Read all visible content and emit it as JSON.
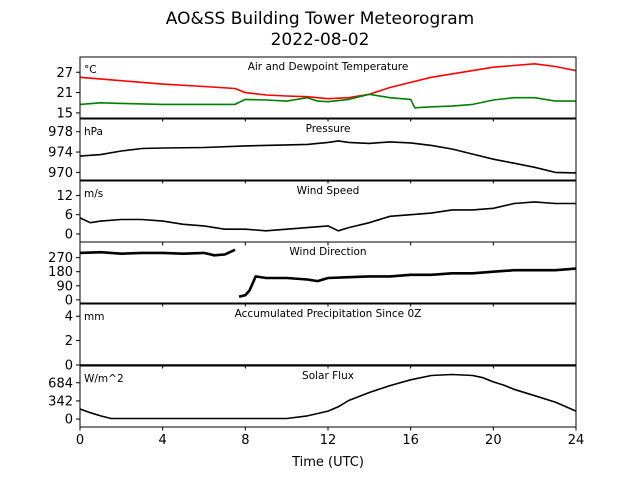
{
  "figure": {
    "title_line1": "AO&SS Building Tower Meteorogram",
    "title_line2": "2022-08-02",
    "xlabel": "Time (UTC)",
    "x_ticks": [
      0,
      4,
      8,
      12,
      16,
      20,
      24
    ],
    "xlim": [
      0,
      24
    ]
  },
  "chart_data": [
    {
      "type": "line",
      "title": "Air and Dewpoint Temperature",
      "unit": "°C",
      "ylim": [
        13.5,
        31.5
      ],
      "y_ticks": [
        15,
        21,
        27
      ],
      "series": [
        {
          "color": "#ff0000",
          "x": [
            0,
            2,
            4,
            6,
            7.5,
            8,
            9,
            10,
            11,
            11.5,
            12,
            13,
            14,
            15,
            16,
            17,
            18,
            19,
            20,
            21,
            22,
            23,
            24
          ],
          "y": [
            25.5,
            24.5,
            23.5,
            22.8,
            22.2,
            21.0,
            20.3,
            20.0,
            19.8,
            19.5,
            19.2,
            19.5,
            20.5,
            22.5,
            24.0,
            25.5,
            26.5,
            27.5,
            28.5,
            29.0,
            29.5,
            28.7,
            27.5
          ]
        },
        {
          "color": "#008000",
          "x": [
            0,
            1,
            2,
            4,
            6,
            7.5,
            8,
            9,
            10,
            11,
            11.5,
            12,
            13,
            14,
            15,
            16,
            16.2,
            17,
            18,
            19,
            20,
            21,
            22,
            23,
            24
          ],
          "y": [
            17.5,
            18.0,
            17.8,
            17.5,
            17.5,
            17.5,
            19.0,
            18.8,
            18.5,
            19.5,
            18.5,
            18.3,
            19.0,
            20.5,
            19.5,
            19.0,
            16.5,
            16.8,
            17.0,
            17.5,
            18.8,
            19.5,
            19.5,
            18.5,
            18.5
          ]
        }
      ]
    },
    {
      "type": "line",
      "title": "Pressure",
      "unit": "hPa",
      "ylim": [
        968.5,
        980.5
      ],
      "y_ticks": [
        970,
        974,
        978
      ],
      "series": [
        {
          "color": "#000000",
          "x": [
            0,
            1,
            2,
            3,
            4,
            6,
            8,
            10,
            11,
            12,
            12.5,
            13,
            14,
            15,
            16,
            17,
            18,
            19,
            20,
            21,
            22,
            23,
            24
          ],
          "y": [
            973.2,
            973.5,
            974.2,
            974.7,
            974.8,
            974.9,
            975.2,
            975.4,
            975.5,
            975.9,
            976.2,
            975.9,
            975.7,
            976.0,
            975.8,
            975.3,
            974.6,
            973.6,
            972.6,
            971.8,
            971.0,
            970.0,
            969.9
          ]
        }
      ]
    },
    {
      "type": "line",
      "title": "Wind Speed",
      "unit": "m/s",
      "ylim": [
        -2.5,
        16.5
      ],
      "y_ticks": [
        0,
        6,
        12
      ],
      "series": [
        {
          "color": "#000000",
          "x": [
            0,
            0.5,
            1,
            2,
            3,
            4,
            5,
            6,
            7,
            8,
            9,
            10,
            11,
            12,
            12.5,
            13,
            14,
            15,
            16,
            17,
            18,
            19,
            20,
            21,
            22,
            23,
            24
          ],
          "y": [
            5.0,
            3.5,
            4.0,
            4.5,
            4.5,
            4.0,
            3.0,
            2.5,
            1.5,
            1.5,
            1.0,
            1.5,
            2.0,
            2.5,
            1.0,
            2.0,
            3.5,
            5.5,
            6.0,
            6.5,
            7.5,
            7.5,
            8.0,
            9.5,
            10.0,
            9.5,
            9.5
          ]
        }
      ]
    },
    {
      "type": "line",
      "title": "Wind Direction",
      "unit": "",
      "ylim": [
        -20,
        370
      ],
      "y_ticks": [
        0,
        90,
        180,
        270
      ],
      "series": [
        {
          "color": "#000000",
          "x": [
            0,
            1,
            2,
            3,
            4,
            5,
            6,
            6.5,
            7,
            7.5
          ],
          "y": [
            300,
            305,
            295,
            300,
            300,
            295,
            300,
            285,
            290,
            320
          ]
        },
        {
          "color": "#000000",
          "x": [
            7.7,
            8,
            8.2,
            8.5,
            9,
            10,
            11,
            11.5,
            12,
            13,
            14,
            15,
            16,
            17,
            18,
            19,
            20,
            21,
            22,
            23,
            24
          ],
          "y": [
            20,
            30,
            60,
            150,
            140,
            140,
            130,
            120,
            140,
            145,
            150,
            150,
            160,
            160,
            170,
            170,
            180,
            190,
            190,
            190,
            200
          ]
        }
      ]
    },
    {
      "type": "line",
      "title": "Accumulated Precipitation Since 0Z",
      "unit": "mm",
      "ylim": [
        0,
        5
      ],
      "y_ticks": [
        0,
        2,
        4
      ],
      "series": [
        {
          "color": "#000000",
          "x": [
            0,
            24
          ],
          "y": [
            0,
            0
          ]
        }
      ]
    },
    {
      "type": "line",
      "title": "Solar Flux",
      "unit": "W/m^2",
      "ylim": [
        -150,
        1000
      ],
      "y_ticks": [
        0,
        342,
        684
      ],
      "series": [
        {
          "color": "#000000",
          "x": [
            0,
            0.5,
            1,
            1.5,
            4,
            6,
            8,
            10,
            11,
            12,
            12.5,
            13,
            14,
            15,
            16,
            17,
            18,
            19,
            19.5,
            20,
            20.5,
            21,
            22,
            23,
            24
          ],
          "y": [
            190,
            120,
            60,
            10,
            10,
            10,
            10,
            10,
            60,
            150,
            230,
            350,
            500,
            630,
            740,
            820,
            840,
            820,
            780,
            700,
            640,
            560,
            440,
            320,
            150
          ]
        }
      ]
    }
  ]
}
